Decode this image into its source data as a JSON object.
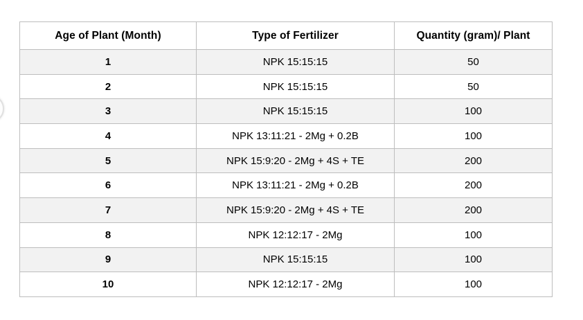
{
  "theme": {
    "background": "#ffffff",
    "text": "#000000",
    "border": "#bdbdbd",
    "stripe": "#f2f2f2"
  },
  "table": {
    "headers": [
      "Age of Plant (Month)",
      "Type of Fertilizer",
      "Quantity (gram)/ Plant"
    ],
    "rows": [
      {
        "month": "1",
        "fertilizer": "NPK 15:15:15",
        "quantity": "50"
      },
      {
        "month": "2",
        "fertilizer": "NPK 15:15:15",
        "quantity": "50"
      },
      {
        "month": "3",
        "fertilizer": "NPK 15:15:15",
        "quantity": "100"
      },
      {
        "month": "4",
        "fertilizer": "NPK 13:11:21 - 2Mg + 0.2B",
        "quantity": "100"
      },
      {
        "month": "5",
        "fertilizer": "NPK 15:9:20 - 2Mg + 4S + TE",
        "quantity": "200"
      },
      {
        "month": "6",
        "fertilizer": "NPK 13:11:21 - 2Mg + 0.2B",
        "quantity": "200"
      },
      {
        "month": "7",
        "fertilizer": "NPK 15:9:20 - 2Mg + 4S + TE",
        "quantity": "200"
      },
      {
        "month": "8",
        "fertilizer": "NPK 12:12:17 - 2Mg",
        "quantity": "100"
      },
      {
        "month": "9",
        "fertilizer": "NPK 15:15:15",
        "quantity": "100"
      },
      {
        "month": "10",
        "fertilizer": "NPK 12:12:17 - 2Mg",
        "quantity": "100"
      }
    ]
  }
}
